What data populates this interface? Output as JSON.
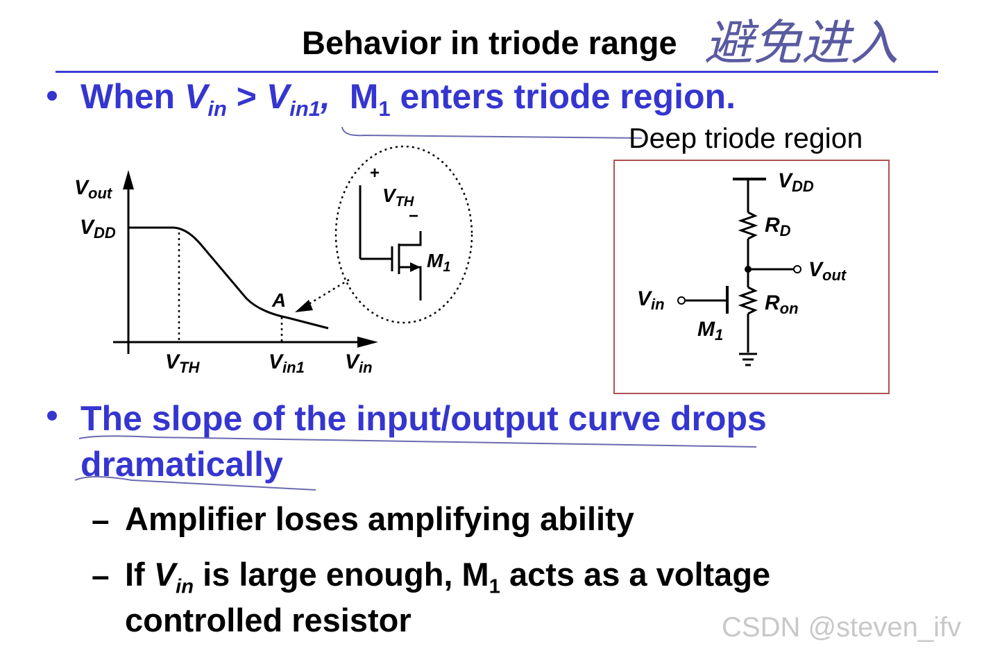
{
  "title": "Behavior in triode range",
  "handwritten_note": "避免进入",
  "bullet1": {
    "when": "When ",
    "vin": "V",
    "vin_sub": "in",
    "gt": " > ",
    "vin1": "V",
    "vin1_sub": "in1",
    "comma": ",",
    "m": "M",
    "m_sub": "1",
    "rest": " enters triode region."
  },
  "deep_triode_label": "Deep triode region",
  "graph": {
    "y_axis_label": "V",
    "y_axis_label_sub": "out",
    "y_tick": "V",
    "y_tick_sub": "DD",
    "x_tick_vth": "V",
    "x_tick_vth_sub": "TH",
    "x_tick_vin1": "V",
    "x_tick_vin1_sub": "in1",
    "x_axis_label": "V",
    "x_axis_label_sub": "in",
    "point_label": "A",
    "inset_plus": "+",
    "inset_minus": "−",
    "inset_vth": "V",
    "inset_vth_sub": "TH",
    "inset_m": "M",
    "inset_m_sub": "1"
  },
  "circuit": {
    "vdd": "V",
    "vdd_sub": "DD",
    "rd": "R",
    "rd_sub": "D",
    "vout": "V",
    "vout_sub": "out",
    "vin": "V",
    "vin_sub": "in",
    "ron": "R",
    "ron_sub": "on",
    "m": "M",
    "m_sub": "1"
  },
  "bullet2_line1": "The slope of the input/output curve drops",
  "bullet2_line2": "dramatically",
  "sub1": "Amplifier loses amplifying ability",
  "sub2": {
    "a": "If ",
    "v": "V",
    "v_sub": "in",
    "b": " is large enough, M",
    "m_sub": "1",
    "c": " acts as a voltage",
    "line2": "controlled resistor"
  },
  "dash": "–",
  "watermark": "CSDN @steven_ifv",
  "colors": {
    "accent": "#3535d0",
    "box_border": "#b05050",
    "rule": "#3b3bd6"
  }
}
